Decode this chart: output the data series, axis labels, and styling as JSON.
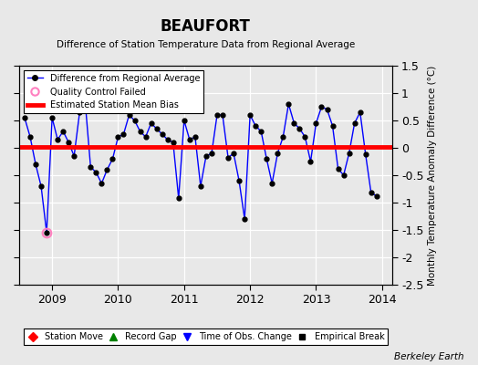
{
  "title": "BEAUFORT",
  "subtitle": "Difference of Station Temperature Data from Regional Average",
  "ylabel": "Monthly Temperature Anomaly Difference (°C)",
  "watermark": "Berkeley Earth",
  "bias_line": 0.02,
  "ylim": [
    -2.5,
    1.5
  ],
  "xlim": [
    2008.5,
    2014.15
  ],
  "xticks": [
    2009,
    2010,
    2011,
    2012,
    2013,
    2014
  ],
  "yticks": [
    -2.5,
    -2.0,
    -1.5,
    -1.0,
    -0.5,
    0.0,
    0.5,
    1.0,
    1.5
  ],
  "bg_color": "#e8e8e8",
  "plot_bg_color": "#e8e8e8",
  "time_series_x": [
    2008.583,
    2008.667,
    2008.75,
    2008.833,
    2008.917,
    2009.0,
    2009.083,
    2009.167,
    2009.25,
    2009.333,
    2009.417,
    2009.5,
    2009.583,
    2009.667,
    2009.75,
    2009.833,
    2009.917,
    2010.0,
    2010.083,
    2010.167,
    2010.25,
    2010.333,
    2010.417,
    2010.5,
    2010.583,
    2010.667,
    2010.75,
    2010.833,
    2010.917,
    2011.0,
    2011.083,
    2011.167,
    2011.25,
    2011.333,
    2011.417,
    2011.5,
    2011.583,
    2011.667,
    2011.75,
    2011.833,
    2011.917,
    2012.0,
    2012.083,
    2012.167,
    2012.25,
    2012.333,
    2012.417,
    2012.5,
    2012.583,
    2012.667,
    2012.75,
    2012.833,
    2012.917,
    2013.0,
    2013.083,
    2013.167,
    2013.25,
    2013.333,
    2013.417,
    2013.5,
    2013.583,
    2013.667,
    2013.75,
    2013.833,
    2013.917
  ],
  "time_series_y": [
    0.55,
    0.2,
    -0.3,
    -0.7,
    -1.55,
    0.55,
    0.15,
    0.3,
    0.1,
    -0.15,
    0.65,
    0.85,
    -0.35,
    -0.45,
    -0.65,
    -0.4,
    -0.2,
    0.2,
    0.25,
    0.6,
    0.5,
    0.3,
    0.2,
    0.45,
    0.35,
    0.25,
    0.15,
    0.1,
    -0.92,
    0.5,
    0.15,
    0.2,
    -0.7,
    -0.15,
    -0.1,
    0.6,
    0.6,
    -0.18,
    -0.1,
    -0.6,
    -1.3,
    0.6,
    0.4,
    0.3,
    -0.2,
    -0.65,
    -0.1,
    0.2,
    0.8,
    0.45,
    0.35,
    0.2,
    -0.25,
    0.45,
    0.75,
    0.7,
    0.4,
    -0.38,
    -0.5,
    -0.1,
    0.45,
    0.65,
    -0.12,
    -0.82,
    -0.88
  ],
  "qc_failed_x": [
    2008.917
  ],
  "qc_failed_y": [
    -1.55
  ],
  "line_color": "blue",
  "marker_color": "black",
  "qc_color": "#ff80c0",
  "bias_color": "red"
}
